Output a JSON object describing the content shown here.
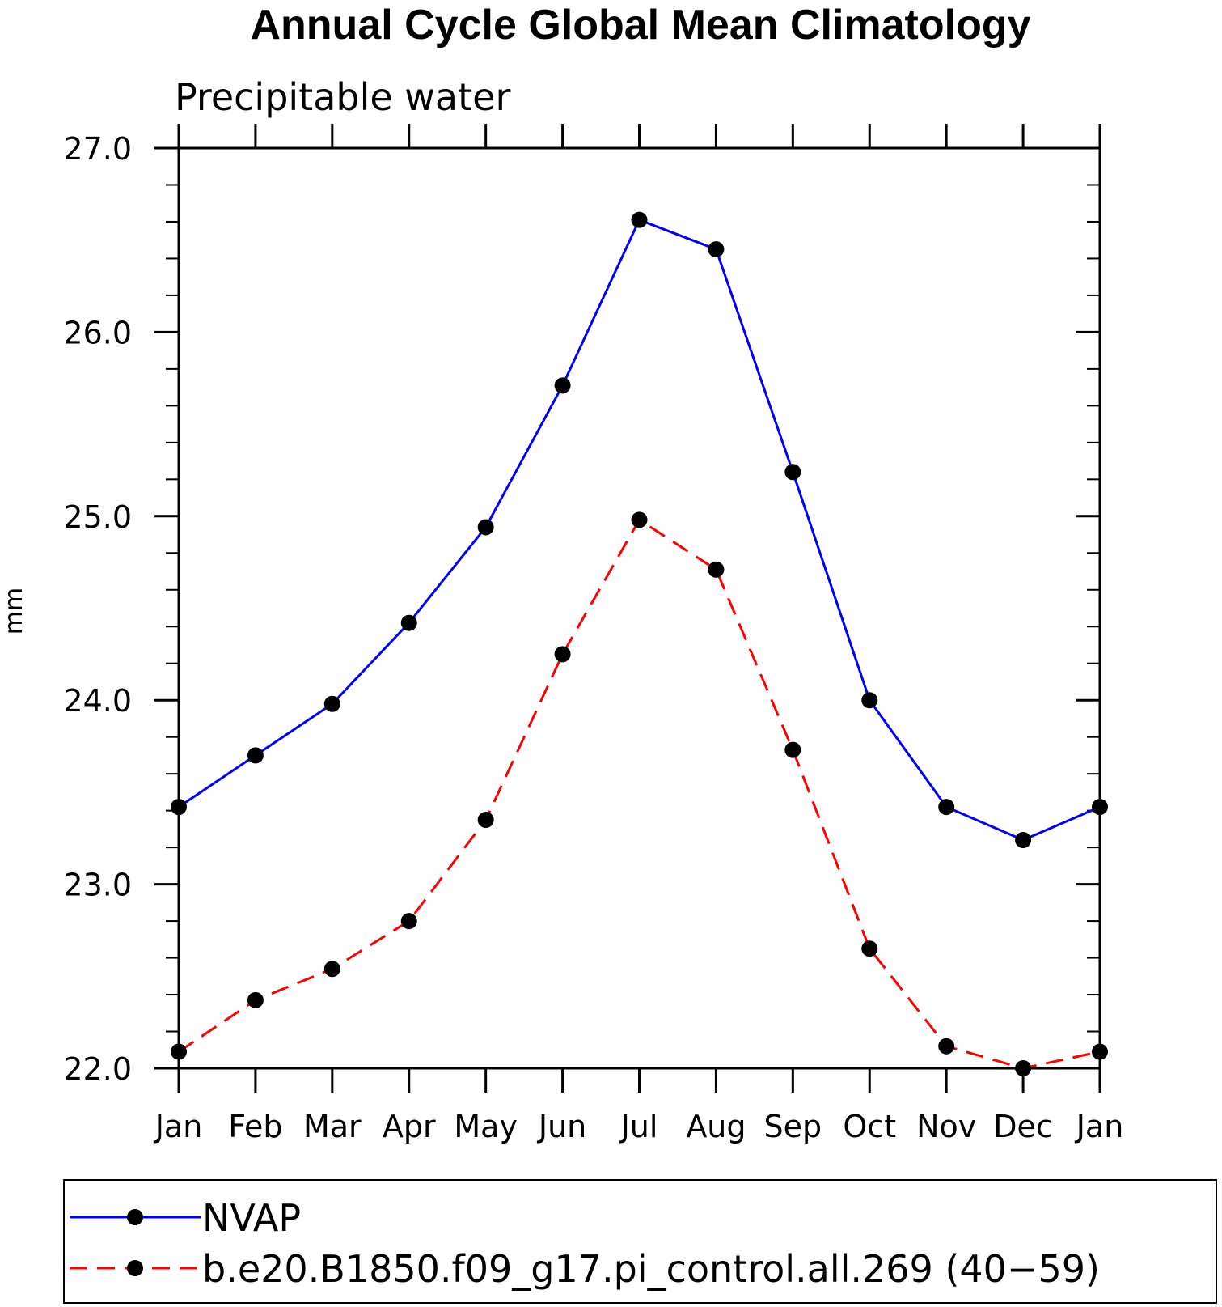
{
  "chart_data": {
    "type": "line",
    "title": "Annual Cycle Global Mean Climatology",
    "subtitle": "Precipitable water",
    "xlabel": "",
    "ylabel": "mm",
    "categories": [
      "Jan",
      "Feb",
      "Mar",
      "Apr",
      "May",
      "Jun",
      "Jul",
      "Aug",
      "Sep",
      "Oct",
      "Nov",
      "Dec",
      "Jan"
    ],
    "ylim": [
      22.0,
      27.0
    ],
    "yticks": [
      22.0,
      23.0,
      24.0,
      25.0,
      26.0,
      27.0
    ],
    "ytick_labels": [
      "22.0",
      "23.0",
      "24.0",
      "25.0",
      "26.0",
      "27.0"
    ],
    "minor_ytick_step": 0.2,
    "grid": false,
    "legend_position": "bottom",
    "series": [
      {
        "name": "NVAP",
        "color": "#0000ff",
        "line_style": "solid",
        "marker": "filled-circle",
        "values": [
          23.42,
          23.7,
          23.98,
          24.42,
          24.94,
          25.71,
          26.61,
          26.45,
          25.24,
          24.0,
          23.42,
          23.24,
          23.42
        ]
      },
      {
        "name": "b.e20.B1850.f09_g17.pi_control.all.269 (40−59)",
        "color": "#ff0000",
        "line_style": "dashed",
        "marker": "filled-circle",
        "values": [
          22.09,
          22.37,
          22.54,
          22.8,
          23.35,
          24.25,
          24.98,
          24.71,
          23.73,
          22.65,
          22.12,
          22.0,
          22.09
        ]
      }
    ]
  }
}
